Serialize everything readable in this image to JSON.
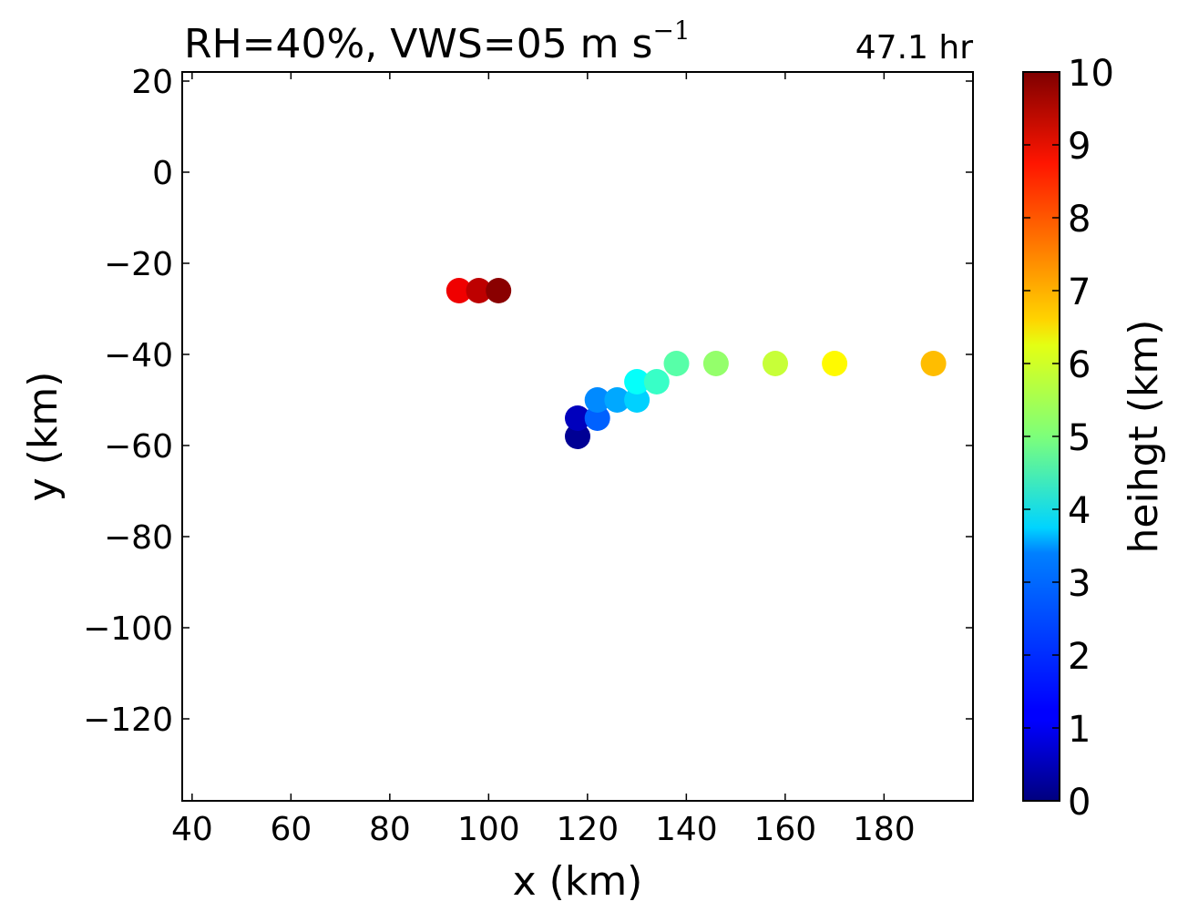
{
  "chart_data": {
    "type": "scatter",
    "title": "RH=40%, VWS=05 m s",
    "title_superscript": "−1",
    "time_label": "47.1 hr",
    "xlabel": "x (km)",
    "ylabel": "y (km)",
    "xlim": [
      38,
      198
    ],
    "ylim": [
      -138,
      22
    ],
    "xticks": [
      40,
      60,
      80,
      100,
      120,
      140,
      160,
      180
    ],
    "yticks": [
      20,
      0,
      -20,
      -40,
      -60,
      -80,
      -100,
      -120
    ],
    "ytick_labels": [
      "20",
      "0",
      "−20",
      "−40",
      "−60",
      "−80",
      "−100",
      "−120"
    ],
    "colorbar": {
      "label": "heihgt (km)",
      "range": [
        0,
        10
      ],
      "ticks": [
        0,
        1,
        2,
        3,
        4,
        5,
        6,
        7,
        8,
        9,
        10
      ],
      "colormap": "jet"
    },
    "points": [
      {
        "x": 118,
        "y": -58,
        "height": 0.2
      },
      {
        "x": 118,
        "y": -54,
        "height": 0.6
      },
      {
        "x": 122,
        "y": -54,
        "height": 2.2
      },
      {
        "x": 122,
        "y": -50,
        "height": 2.6
      },
      {
        "x": 126,
        "y": -50,
        "height": 2.9
      },
      {
        "x": 130,
        "y": -50,
        "height": 3.3
      },
      {
        "x": 130,
        "y": -46,
        "height": 3.8
      },
      {
        "x": 134,
        "y": -46,
        "height": 4.3
      },
      {
        "x": 138,
        "y": -42,
        "height": 4.6
      },
      {
        "x": 146,
        "y": -42,
        "height": 5.2
      },
      {
        "x": 158,
        "y": -42,
        "height": 5.7
      },
      {
        "x": 170,
        "y": -42,
        "height": 6.3
      },
      {
        "x": 190,
        "y": -42,
        "height": 6.9
      },
      {
        "x": 94,
        "y": -26,
        "height": 8.9
      },
      {
        "x": 98,
        "y": -26,
        "height": 9.4
      },
      {
        "x": 102,
        "y": -26,
        "height": 9.9
      }
    ]
  },
  "colors": {
    "time_label": "#0000ff"
  }
}
